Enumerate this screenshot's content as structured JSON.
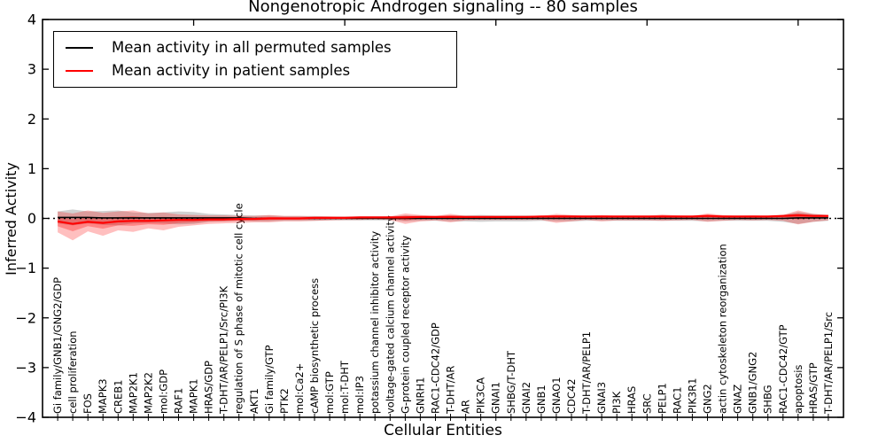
{
  "chart_data": {
    "type": "line",
    "title": "Nongenotropic Androgen signaling -- 80 samples",
    "xlabel": "Cellular Entities",
    "ylabel": "Inferred Activity",
    "xlim": [
      0,
      53
    ],
    "ylim": [
      -4,
      4
    ],
    "ytick_values": [
      4,
      3,
      2,
      1,
      0,
      -1,
      -2,
      -3,
      -4
    ],
    "ytick_labels": [
      "4",
      "3",
      "2",
      "1",
      "0",
      "−1",
      "−2",
      "−3",
      "−4"
    ],
    "top_ticks": [
      10,
      20,
      30,
      40,
      50
    ],
    "grid": false,
    "zero_line": true,
    "legend_position": "upper left",
    "categories": [
      "Gi family/GNB1/GNG2/GDP",
      "cell proliferation",
      "FOS",
      "MAPK3",
      "CREB1",
      "MAP2K1",
      "MAP2K2",
      "mol:GDP",
      "RAF1",
      "MAPK1",
      "HRAS/GDP",
      "T-DHT/AR/PELP1/Src/PI3K",
      "regulation of S phase of mitotic cell cycle",
      "AKT1",
      "Gi family/GTP",
      "PTK2",
      "mol:Ca2+",
      "cAMP biosynthetic process",
      "mol:GTP",
      "mol:T-DHT",
      "mol:IP3",
      "potassium channel inhibitor activity",
      "voltage-gated calcium channel activity",
      "G-protein coupled receptor activity",
      "GNRH1",
      "RAC1-CDC42/GDP",
      "T-DHT/AR",
      "AR",
      "PIK3CA",
      "GNAI1",
      "SHBG/T-DHT",
      "GNAI2",
      "GNB1",
      "GNAO1",
      "CDC42",
      "T-DHT/AR/PELP1",
      "GNAI3",
      "PI3K",
      "HRAS",
      "SRC",
      "PELP1",
      "RAC1",
      "PIK3R1",
      "GNG2",
      "actin cytoskeleton reorganization",
      "GNAZ",
      "GNB1/GNG2",
      "SHBG",
      "RAC1-CDC42/GTP",
      "apoptosis",
      "HRAS/GTP",
      "T-DHT/AR/PELP1/Src"
    ],
    "series": [
      {
        "name": "Mean activity in all permuted samples",
        "color": "#000000",
        "mean": [
          0.02,
          0.02,
          0.02,
          0.01,
          0.01,
          0.01,
          0.01,
          0.01,
          0.01,
          0.01,
          0.01,
          0.01,
          0.01,
          0.0,
          0.0,
          0.0,
          0.0,
          0.0,
          0.0,
          0.0,
          0.0,
          0.0,
          0.0,
          0.0,
          0.0,
          0.0,
          0.0,
          0.0,
          0.0,
          0.0,
          0.0,
          0.0,
          0.0,
          0.0,
          0.0,
          0.0,
          0.0,
          0.0,
          0.0,
          0.0,
          0.0,
          0.0,
          0.0,
          0.0,
          0.0,
          0.0,
          0.0,
          0.0,
          0.0,
          0.01,
          0.01,
          0.01
        ],
        "std": [
          0.12,
          0.16,
          0.12,
          0.14,
          0.15,
          0.11,
          0.1,
          0.11,
          0.13,
          0.12,
          0.08,
          0.07,
          0.06,
          0.06,
          0.06,
          0.05,
          0.05,
          0.05,
          0.04,
          0.04,
          0.04,
          0.04,
          0.04,
          0.06,
          0.05,
          0.05,
          0.06,
          0.06,
          0.07,
          0.06,
          0.06,
          0.06,
          0.05,
          0.06,
          0.06,
          0.05,
          0.05,
          0.05,
          0.05,
          0.05,
          0.05,
          0.05,
          0.05,
          0.06,
          0.05,
          0.05,
          0.05,
          0.05,
          0.07,
          0.12,
          0.08,
          0.06
        ]
      },
      {
        "name": "Mean activity in patient samples",
        "color": "#ff0000",
        "mean": [
          -0.06,
          -0.11,
          -0.07,
          -0.09,
          -0.06,
          -0.05,
          -0.05,
          -0.04,
          -0.03,
          -0.03,
          -0.02,
          -0.02,
          -0.01,
          -0.01,
          0.0,
          0.0,
          0.0,
          0.01,
          0.01,
          0.01,
          0.02,
          0.02,
          0.02,
          0.02,
          0.03,
          0.03,
          0.03,
          0.03,
          0.03,
          0.03,
          0.03,
          0.03,
          0.04,
          0.04,
          0.04,
          0.04,
          0.04,
          0.04,
          0.04,
          0.04,
          0.04,
          0.04,
          0.04,
          0.05,
          0.04,
          0.04,
          0.04,
          0.04,
          0.05,
          0.06,
          0.05,
          0.05
        ],
        "upper": [
          0.14,
          0.1,
          0.16,
          0.11,
          0.14,
          0.16,
          0.1,
          0.12,
          0.08,
          0.07,
          0.06,
          0.06,
          0.05,
          0.05,
          0.07,
          0.05,
          0.05,
          0.04,
          0.04,
          0.03,
          0.03,
          0.03,
          0.04,
          0.1,
          0.07,
          0.05,
          0.09,
          0.05,
          0.05,
          0.05,
          0.05,
          0.05,
          0.05,
          0.09,
          0.07,
          0.05,
          0.07,
          0.05,
          0.05,
          0.05,
          0.08,
          0.06,
          0.05,
          0.1,
          0.07,
          0.05,
          0.06,
          0.05,
          0.07,
          0.16,
          0.09,
          0.07
        ],
        "lower": [
          -0.28,
          -0.44,
          -0.26,
          -0.35,
          -0.24,
          -0.27,
          -0.2,
          -0.24,
          -0.17,
          -0.14,
          -0.11,
          -0.1,
          -0.09,
          -0.08,
          -0.08,
          -0.06,
          -0.06,
          -0.05,
          -0.04,
          -0.03,
          -0.03,
          -0.02,
          -0.03,
          -0.11,
          -0.06,
          -0.04,
          -0.08,
          -0.04,
          -0.03,
          -0.03,
          -0.03,
          -0.03,
          -0.03,
          -0.09,
          -0.06,
          -0.03,
          -0.06,
          -0.04,
          -0.04,
          -0.04,
          -0.05,
          -0.04,
          -0.03,
          -0.07,
          -0.05,
          -0.03,
          -0.04,
          -0.03,
          -0.05,
          -0.12,
          -0.07,
          -0.04
        ]
      }
    ]
  }
}
